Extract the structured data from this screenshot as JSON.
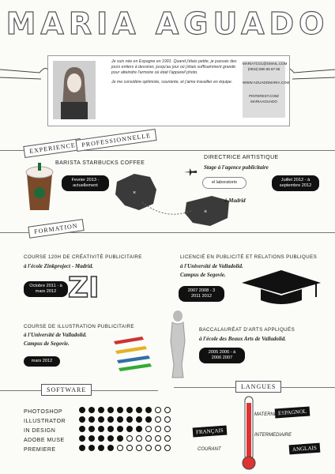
{
  "header": {
    "name": "MARIA AGUADO"
  },
  "bio": {
    "paragraph1": "Je suis née en Espagne en 1991. Quand j'étais petite, je passais des jours entiers à dessiner, jusqu'au jour où j'étais suffisamment grande pour atteindre l'armoire où était l'appareil photo.",
    "paragraph2": "Je me considère optimiste, souriante, et j'aime travailler en équipe.",
    "contact": [
      "MARIA7CG1@GMAIL.COM",
      "(0034) 680 65 67 66",
      "WWW.AGUADOMARIA.COM",
      "PINTEREST.COM/",
      "MARIAAGUADO"
    ]
  },
  "experience": {
    "label1": "EXPERIENCE",
    "label2": "PROFESSIONNELLE",
    "job1_title": "BARISTA STARBUCKS COFFEE",
    "job1_dates": "Fevrier 2013 - actuellement",
    "job2_title": "DIRECTRICE ARTISTIQUE",
    "job2_subtitle": "Stage à l'agence publicitaire",
    "job2_agency": "el laboratorio",
    "job2_dates": "Juillet 2012 - à septembre 2012",
    "job2_place": "à Madrid"
  },
  "formation": {
    "label": "FORMATION",
    "course1_title": "COURSE 120H DE CRÉATIVITÉ PUBLICITAIRE",
    "course1_school": "à l'école Zinkproject - Madrid.",
    "course1_dates": "Octobre 2011 - à mars 2012",
    "degree_title": "LICENCIÉ EN PUBLICITÉ ET RELATIONS PUBLIQUES",
    "degree_school1": "à l'Université de Valladolid.",
    "degree_school2": "Campus de Segovie.",
    "degree_dates": "2007 2008 - 3 2011 2012",
    "course2_title": "COURSE DE ILLUSTRATION PUBLICITAIRE",
    "course2_school1": "à l'Université de Valladolid.",
    "course2_school2": "Campus de Segovie.",
    "course2_dates": "mars 2012",
    "bac_title": "BACCALAURÉAT D'ARTS APPLIQUÉS",
    "bac_school": "à l'école des Beaux Arts de Valladolid.",
    "bac_dates": "2005 2006 - à 2006 2007",
    "zi_glyph": "ZI"
  },
  "software": {
    "label": "SOFTWARE",
    "items": [
      {
        "name": "PHOTOSHOP",
        "level": 8
      },
      {
        "name": "ILLUSTRATOR",
        "level": 8
      },
      {
        "name": "IN DESIGN",
        "level": 7
      },
      {
        "name": "ADOBE MUSE",
        "level": 5
      },
      {
        "name": "PREMIERE",
        "level": 4
      }
    ],
    "max_level": 10
  },
  "languages": {
    "label": "LANGUES",
    "francais": "FRANÇAIS",
    "espagnol": "ESPAGNOL",
    "anglais": "ANGLAIS",
    "maternelle": "MATERNELLE",
    "courant": "COURANT",
    "intermediaire": "INTERMEDIAIRE"
  }
}
